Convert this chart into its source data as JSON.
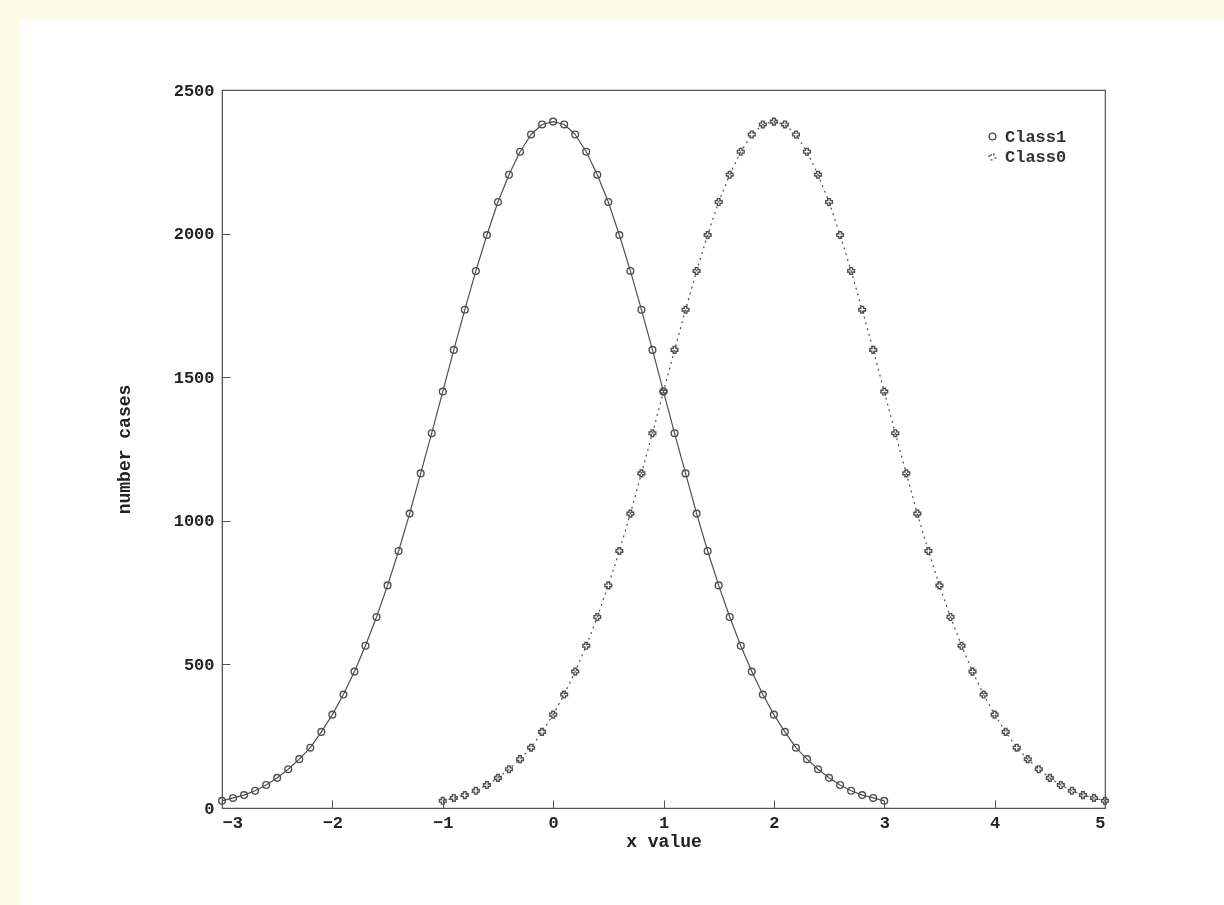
{
  "chart_data": {
    "type": "line",
    "xlabel": "x value",
    "ylabel": "number cases",
    "xlim": [
      -3,
      5
    ],
    "xticks": [
      -3,
      -2,
      -1,
      0,
      1,
      2,
      3,
      4,
      5
    ],
    "ylim": [
      0,
      2500
    ],
    "yticks": [
      0,
      500,
      1000,
      1500,
      2000,
      2500
    ],
    "grid": false,
    "legend": "top right",
    "series": [
      {
        "name": "Class1",
        "color": "#505050",
        "marker": "circle",
        "line_style": "solid",
        "x": [
          -3.0,
          -2.9,
          -2.8,
          -2.7,
          -2.6,
          -2.5,
          -2.4,
          -2.3,
          -2.2,
          -2.1,
          -2.0,
          -1.9,
          -1.8,
          -1.7,
          -1.6,
          -1.5,
          -1.4,
          -1.3,
          -1.2,
          -1.1,
          -1.0,
          -0.9,
          -0.8,
          -0.7,
          -0.6,
          -0.5,
          -0.4,
          -0.3,
          -0.2,
          -0.1,
          0.0,
          0.1,
          0.2,
          0.3,
          0.4,
          0.5,
          0.6,
          0.7,
          0.8,
          0.9,
          1.0,
          1.1,
          1.2,
          1.3,
          1.4,
          1.5,
          1.6,
          1.7,
          1.8,
          1.9,
          2.0,
          2.1,
          2.2,
          2.3,
          2.4,
          2.5,
          2.6,
          2.7,
          2.8,
          2.9,
          3.0
        ],
        "values": [
          25,
          35,
          45,
          60,
          80,
          105,
          135,
          170,
          210,
          265,
          325,
          395,
          475,
          565,
          665,
          775,
          895,
          1025,
          1165,
          1305,
          1450,
          1595,
          1735,
          1870,
          1995,
          2110,
          2205,
          2285,
          2345,
          2380,
          2390,
          2380,
          2345,
          2285,
          2205,
          2110,
          1995,
          1870,
          1735,
          1595,
          1450,
          1305,
          1165,
          1025,
          895,
          775,
          665,
          565,
          475,
          395,
          325,
          265,
          210,
          170,
          135,
          105,
          80,
          60,
          45,
          35,
          25
        ]
      },
      {
        "name": "Class0",
        "color": "#505050",
        "marker": "cross",
        "line_style": "dotted",
        "x": [
          -1.0,
          -0.9,
          -0.8,
          -0.7,
          -0.6,
          -0.5,
          -0.4,
          -0.3,
          -0.2,
          -0.1,
          0.0,
          0.1,
          0.2,
          0.3,
          0.4,
          0.5,
          0.6,
          0.7,
          0.8,
          0.9,
          1.0,
          1.1,
          1.2,
          1.3,
          1.4,
          1.5,
          1.6,
          1.7,
          1.8,
          1.9,
          2.0,
          2.1,
          2.2,
          2.3,
          2.4,
          2.5,
          2.6,
          2.7,
          2.8,
          2.9,
          3.0,
          3.1,
          3.2,
          3.3,
          3.4,
          3.5,
          3.6,
          3.7,
          3.8,
          3.9,
          4.0,
          4.1,
          4.2,
          4.3,
          4.4,
          4.5,
          4.6,
          4.7,
          4.8,
          4.9,
          5.0
        ],
        "values": [
          25,
          35,
          45,
          60,
          80,
          105,
          135,
          170,
          210,
          265,
          325,
          395,
          475,
          565,
          665,
          775,
          895,
          1025,
          1165,
          1305,
          1450,
          1595,
          1735,
          1870,
          1995,
          2110,
          2205,
          2285,
          2345,
          2380,
          2390,
          2380,
          2345,
          2285,
          2205,
          2110,
          1995,
          1870,
          1735,
          1595,
          1450,
          1305,
          1165,
          1025,
          895,
          775,
          665,
          565,
          475,
          395,
          325,
          265,
          210,
          170,
          135,
          105,
          80,
          60,
          45,
          35,
          25
        ]
      }
    ]
  }
}
